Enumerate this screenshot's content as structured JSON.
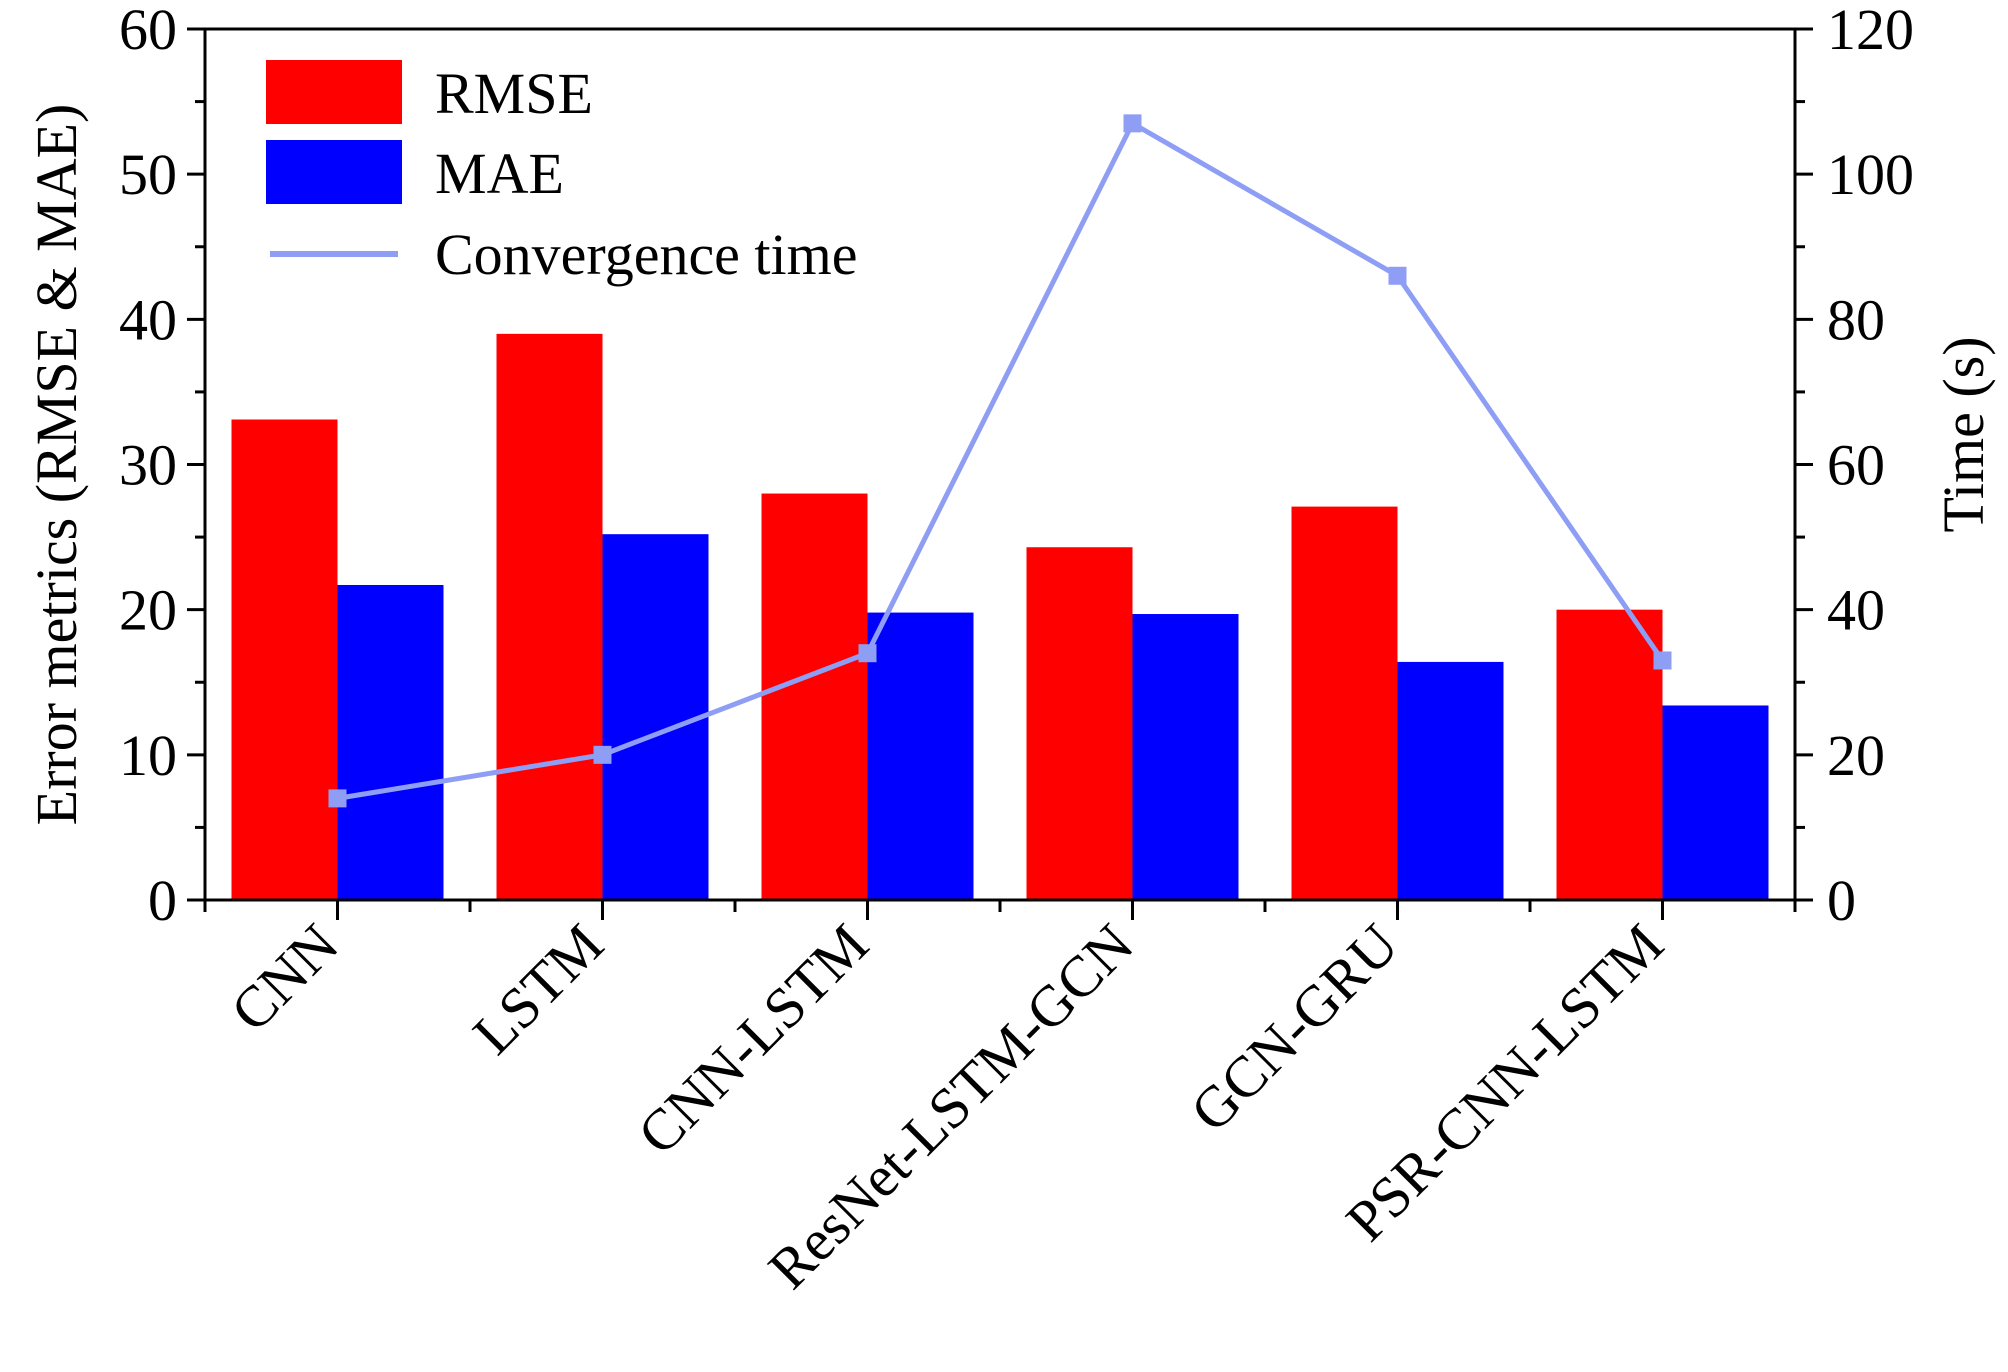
{
  "chart_data": {
    "type": "bar",
    "categories": [
      "CNN",
      "LSTM",
      "CNN-LSTM",
      "ResNet-LSTM-GCN",
      "GCN-GRU",
      "PSR-CNN-LSTM"
    ],
    "series": [
      {
        "name": "RMSE",
        "values": [
          33.1,
          39.0,
          28.0,
          24.3,
          27.1,
          20.0
        ],
        "color": "#ff0000",
        "axis": "left",
        "kind": "bar"
      },
      {
        "name": "MAE",
        "values": [
          21.7,
          25.2,
          19.8,
          19.7,
          16.4,
          13.4
        ],
        "color": "#0000ff",
        "axis": "left",
        "kind": "bar"
      },
      {
        "name": "Convergence time",
        "values": [
          14,
          20,
          34,
          107,
          86,
          33
        ],
        "color": "#8f9ef5",
        "axis": "right",
        "kind": "line",
        "marker": "square"
      }
    ],
    "ylabel": "Error metrics (RMSE & MAE)",
    "y2label": "Time (s)",
    "xlabel": "",
    "ylim": [
      0,
      60
    ],
    "y2lim": [
      0,
      120
    ],
    "yticks": [
      0,
      10,
      20,
      30,
      40,
      50,
      60
    ],
    "y2ticks": [
      0,
      20,
      40,
      60,
      80,
      100,
      120
    ],
    "grid": false,
    "legend_position": "top-left"
  }
}
